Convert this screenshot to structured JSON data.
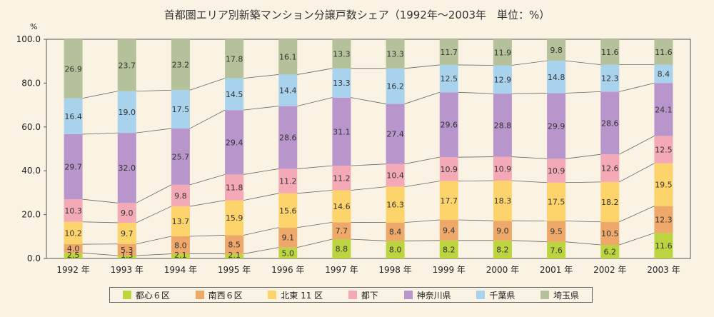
{
  "chart_data": {
    "type": "stacked-bar",
    "title": "首都圏エリア別新築マンション分譲戸数シェア（1992年～2003年　単位：%）",
    "yunit": "%",
    "ylim": [
      0,
      100
    ],
    "yticks": [
      "0.0",
      "20.0",
      "40.0",
      "60.0",
      "80.0",
      "100.0"
    ],
    "categories": [
      "1992 年",
      "1993 年",
      "1994 年",
      "1995 年",
      "1996 年",
      "1997 年",
      "1998 年",
      "1999 年",
      "2000 年",
      "2001 年",
      "2002 年",
      "2003 年"
    ],
    "series": [
      {
        "name": "都心６区",
        "color": "#bcd43f",
        "values": [
          2.5,
          1.3,
          2.1,
          2.1,
          5.0,
          8.8,
          8.0,
          8.2,
          8.2,
          7.6,
          6.2,
          11.6
        ]
      },
      {
        "name": "南西６区",
        "color": "#eea86a",
        "values": [
          4.0,
          5.3,
          8.0,
          8.5,
          9.1,
          7.7,
          8.4,
          9.4,
          9.0,
          9.5,
          10.5,
          12.3
        ]
      },
      {
        "name": "北東 11 区",
        "color": "#fdd36c",
        "values": [
          10.2,
          9.7,
          13.7,
          15.9,
          15.6,
          14.6,
          16.3,
          17.7,
          18.3,
          17.5,
          18.2,
          19.5
        ]
      },
      {
        "name": "都下",
        "color": "#f4a9b6",
        "values": [
          10.3,
          9.0,
          9.8,
          11.8,
          11.2,
          11.2,
          10.4,
          10.9,
          10.9,
          10.9,
          12.6,
          12.5
        ]
      },
      {
        "name": "神奈川県",
        "color": "#b896cc",
        "values": [
          29.7,
          32.0,
          25.7,
          29.4,
          28.6,
          31.1,
          27.4,
          29.6,
          28.8,
          29.9,
          28.6,
          24.1
        ]
      },
      {
        "name": "千葉県",
        "color": "#a9d3ec",
        "values": [
          16.4,
          19.0,
          17.5,
          14.5,
          14.4,
          13.3,
          16.2,
          12.5,
          12.9,
          14.8,
          12.3,
          8.4
        ]
      },
      {
        "name": "埼玉県",
        "color": "#b4c19a",
        "values": [
          26.9,
          23.7,
          23.2,
          17.8,
          16.1,
          13.3,
          13.3,
          11.7,
          11.9,
          9.8,
          11.6,
          11.6
        ]
      }
    ],
    "data_labels": [
      [
        "2.5",
        "4.0",
        "10.2",
        "10.3",
        "29.7",
        "16.4",
        "26.9"
      ],
      [
        "1.3",
        "5.3",
        "9.7",
        "9.0",
        "32.0",
        "19.0",
        "23.7"
      ],
      [
        "2.1",
        "8.0",
        "13.7",
        "9.8",
        "25.7",
        "17.5",
        "23.2"
      ],
      [
        "2.1",
        "8.5",
        "15.9",
        "11.8",
        "29.4",
        "14.5",
        "17.8"
      ],
      [
        "5.0",
        "9.1",
        "15.6",
        "11.2",
        "28.6",
        "14.4",
        "16.1"
      ],
      [
        "8.8",
        "7.7",
        "14.6",
        "11.2",
        "31.1",
        "13.3",
        "13.3"
      ],
      [
        "8.0",
        "8.4",
        "16.3",
        "10.4",
        "27.4",
        "16.2",
        "13.3"
      ],
      [
        "8.2",
        "9.4",
        "17.7",
        "10.9",
        "29.6",
        "12.5",
        "11.7"
      ],
      [
        "8.2",
        "9.0",
        "18.3",
        "10.9",
        "28.8",
        "12.9",
        "11.9"
      ],
      [
        "7.6",
        "9.5",
        "17.5",
        "10.9",
        "29.9",
        "14.8",
        "9.8"
      ],
      [
        "6.2",
        "10.5",
        "18.2",
        "12.6",
        "28.6",
        "12.3",
        "11.6"
      ],
      [
        "11.6",
        "12.3",
        "19.5",
        "12.5",
        "24.1",
        "8.4",
        "11.6"
      ]
    ]
  }
}
